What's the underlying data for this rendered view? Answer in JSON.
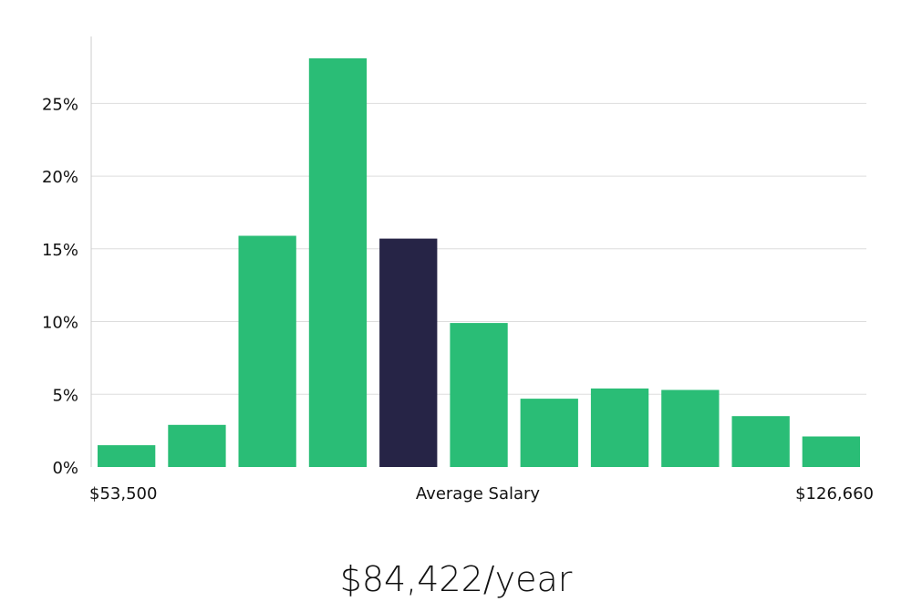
{
  "chart_data": {
    "type": "bar",
    "title": "",
    "xlabel": "",
    "ylabel": "",
    "values": [
      1.5,
      2.9,
      15.9,
      28.1,
      15.7,
      9.9,
      4.7,
      5.4,
      5.3,
      3.5,
      2.1
    ],
    "highlight_index": 4,
    "ylim": [
      0,
      29.6
    ],
    "yticks": [
      0,
      5,
      10,
      15,
      20,
      25
    ],
    "ytick_labels": [
      "0%",
      "5%",
      "10%",
      "15%",
      "20%",
      "25%"
    ],
    "grid": true,
    "x_labels": {
      "left": "$53,500",
      "center": "Average Salary",
      "right": "$126,660"
    },
    "colors": {
      "bar": "#2abd76",
      "highlight": "#262446",
      "grid": "#dddddd",
      "axis": "#cccccc"
    }
  },
  "headline": "$84,422/year"
}
